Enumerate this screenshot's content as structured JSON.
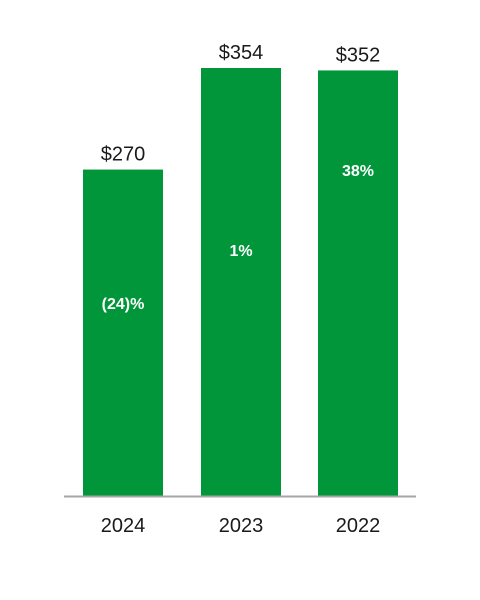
{
  "chart_data": {
    "type": "bar",
    "categories": [
      "2024",
      "2023",
      "2022"
    ],
    "values": [
      270,
      354,
      352
    ],
    "value_labels": [
      "$270",
      "$354",
      "$352"
    ],
    "change_labels": [
      "(24)%",
      "1%",
      "38%"
    ],
    "title": "",
    "xlabel": "",
    "ylabel": "",
    "ylim": [
      0,
      360
    ],
    "grid": false,
    "legend": "none",
    "colors": {
      "bar": "#009639",
      "baseline": "#a6a6a6",
      "value_text": "#1a1a1a",
      "change_text": "#ffffff"
    }
  }
}
